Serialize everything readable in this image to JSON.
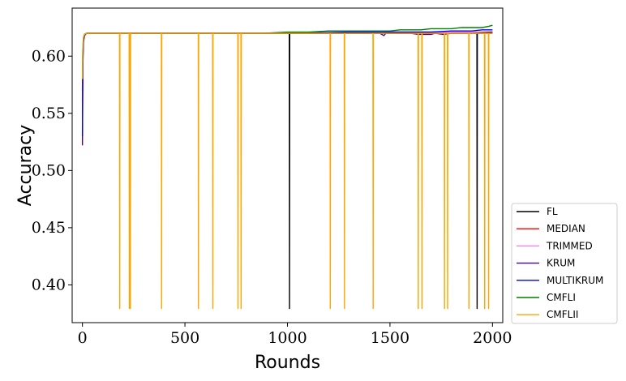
{
  "chart_data": {
    "type": "line",
    "title": "",
    "xlabel": "Rounds",
    "ylabel": "Accuracy",
    "xlim": [
      -50,
      2050
    ],
    "ylim": [
      0.367,
      0.642
    ],
    "xticks": [
      0,
      500,
      1000,
      1500,
      2000
    ],
    "xtick_labels": [
      "0",
      "500",
      "1000",
      "1500",
      "2000"
    ],
    "yticks": [
      0.4,
      0.45,
      0.5,
      0.55,
      0.6
    ],
    "ytick_labels": [
      "0.40",
      "0.45",
      "0.50",
      "0.55",
      "0.60"
    ],
    "grid": false,
    "legend_position": "outside-right-bottom",
    "series": [
      {
        "name": "FL",
        "color": "#000000",
        "x": [
          0,
          2,
          5,
          10,
          20,
          1009,
          1010,
          1011,
          1924,
          1925,
          1926,
          2000
        ],
        "y": [
          0.57,
          0.605,
          0.615,
          0.619,
          0.62,
          0.62,
          0.379,
          0.62,
          0.62,
          0.379,
          0.62,
          0.62
        ]
      },
      {
        "name": "MEDIAN",
        "color": "#ff0000",
        "x": [
          0,
          2,
          5,
          10,
          20,
          500,
          1000,
          1500,
          1800,
          2000
        ],
        "y": [
          0.56,
          0.6,
          0.615,
          0.619,
          0.62,
          0.62,
          0.62,
          0.621,
          0.621,
          0.621
        ]
      },
      {
        "name": "TRIMMED",
        "color": "#ee82ee",
        "x": [
          0,
          2,
          5,
          10,
          20,
          500,
          1000,
          1500,
          2000
        ],
        "y": [
          0.55,
          0.6,
          0.614,
          0.619,
          0.62,
          0.62,
          0.62,
          0.621,
          0.621
        ]
      },
      {
        "name": "KRUM",
        "color": "#4b0082",
        "x": [
          0,
          2,
          5,
          10,
          20,
          500,
          1000,
          1300,
          1450,
          1460,
          1470,
          1480,
          1600,
          1640,
          1700,
          1720,
          1760,
          1800,
          1900,
          2000
        ],
        "y": [
          0.522,
          0.59,
          0.612,
          0.618,
          0.62,
          0.62,
          0.62,
          0.62,
          0.62,
          0.619,
          0.618,
          0.62,
          0.62,
          0.619,
          0.619,
          0.62,
          0.619,
          0.62,
          0.62,
          0.621
        ]
      },
      {
        "name": "MULTIKRUM",
        "color": "#0000ff",
        "x": [
          0,
          2,
          5,
          10,
          20,
          500,
          1000,
          1300,
          1500,
          1700,
          1800,
          1900,
          1950,
          2000
        ],
        "y": [
          0.53,
          0.595,
          0.613,
          0.619,
          0.62,
          0.62,
          0.62,
          0.621,
          0.621,
          0.621,
          0.622,
          0.622,
          0.623,
          0.623
        ]
      },
      {
        "name": "CMFLI",
        "color": "#008000",
        "x": [
          0,
          2,
          5,
          10,
          20,
          500,
          880,
          1000,
          1100,
          1200,
          1300,
          1400,
          1500,
          1550,
          1600,
          1650,
          1700,
          1750,
          1800,
          1850,
          1900,
          1950,
          1980,
          2000
        ],
        "y": [
          0.58,
          0.607,
          0.616,
          0.619,
          0.62,
          0.62,
          0.62,
          0.621,
          0.621,
          0.622,
          0.622,
          0.622,
          0.622,
          0.623,
          0.623,
          0.623,
          0.624,
          0.624,
          0.624,
          0.625,
          0.625,
          0.625,
          0.626,
          0.627
        ]
      },
      {
        "name": "CMFLII",
        "color": "#ffa500",
        "x": [
          0,
          2,
          5,
          10,
          20,
          181,
          182,
          183,
          228,
          229,
          230,
          233,
          234,
          235,
          385,
          386,
          387,
          565,
          566,
          567,
          635,
          636,
          637,
          758,
          759,
          760,
          773,
          774,
          775,
          1208,
          1209,
          1210,
          1277,
          1278,
          1279,
          1417,
          1418,
          1419,
          1637,
          1638,
          1639,
          1655,
          1656,
          1657,
          1765,
          1766,
          1767,
          1780,
          1781,
          1782,
          1884,
          1885,
          1886,
          1961,
          1962,
          1963,
          1980,
          1981,
          1982,
          2000
        ],
        "y": [
          0.58,
          0.61,
          0.617,
          0.619,
          0.62,
          0.62,
          0.379,
          0.62,
          0.62,
          0.379,
          0.62,
          0.62,
          0.379,
          0.62,
          0.62,
          0.379,
          0.62,
          0.62,
          0.379,
          0.62,
          0.62,
          0.379,
          0.62,
          0.62,
          0.379,
          0.62,
          0.62,
          0.379,
          0.62,
          0.62,
          0.379,
          0.62,
          0.62,
          0.379,
          0.62,
          0.62,
          0.379,
          0.62,
          0.62,
          0.379,
          0.62,
          0.62,
          0.379,
          0.62,
          0.62,
          0.379,
          0.62,
          0.62,
          0.379,
          0.62,
          0.62,
          0.379,
          0.62,
          0.62,
          0.379,
          0.62,
          0.62,
          0.379,
          0.62,
          0.62
        ]
      }
    ]
  }
}
